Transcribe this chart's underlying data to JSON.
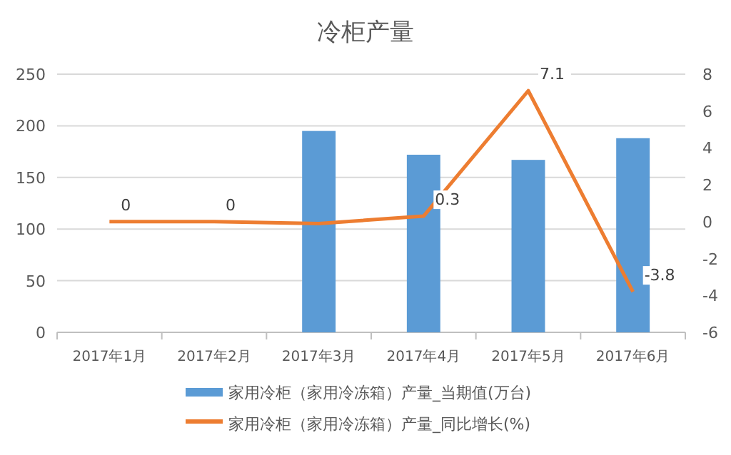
{
  "chart_data": {
    "type": "bar",
    "title": "冷柜产量",
    "categories": [
      "2017年1月",
      "2017年2月",
      "2017年3月",
      "2017年4月",
      "2017年5月",
      "2017年6月"
    ],
    "series": [
      {
        "name": "家用冷柜（家用冷冻箱）产量_当期值(万台)",
        "color": "#5b9bd5",
        "values": [
          null,
          null,
          195,
          172,
          167,
          188
        ]
      },
      {
        "name": "家用冷柜（家用冷冻箱）产量_同比增长(%)",
        "type": "line",
        "axis": "y2",
        "color": "#ed7d31",
        "values": [
          0,
          0,
          -0.1,
          0.3,
          7.1,
          -3.8
        ],
        "value_labels": [
          "0",
          "0",
          null,
          "0.3",
          "7.1",
          "-3.8"
        ]
      }
    ],
    "ylim": [
      0,
      250
    ],
    "yticks": [
      0,
      50,
      100,
      150,
      200,
      250
    ],
    "y2lim": [
      -6,
      8
    ],
    "y2ticks": [
      -6,
      -4,
      -2,
      0,
      2,
      4,
      6,
      8
    ],
    "grid": "y",
    "legend": "bottom",
    "marker": "none"
  }
}
